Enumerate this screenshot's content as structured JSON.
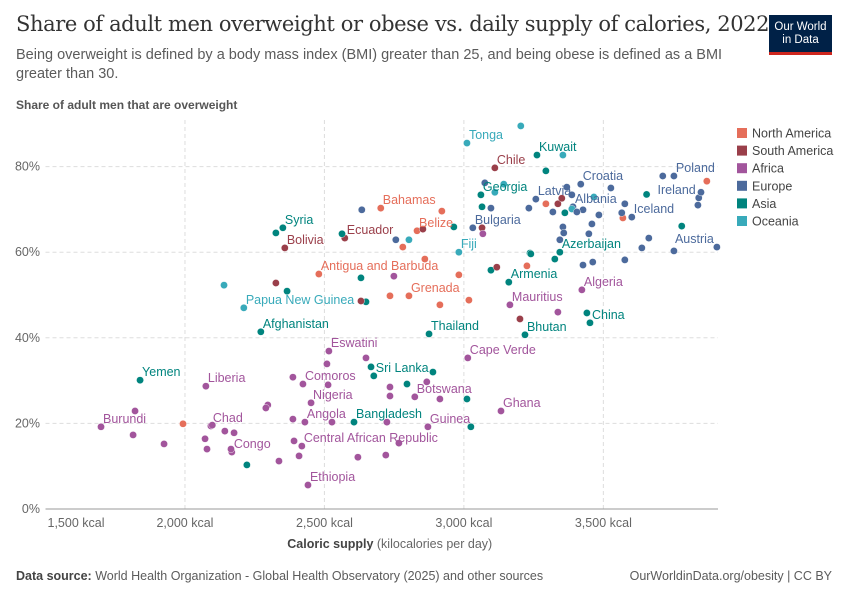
{
  "header": {
    "title": "Share of adult men overweight or obese vs. daily supply of calories, 2022",
    "subtitle": "Being overweight is defined by a body mass index (BMI) greater than 25, and being obese is defined as a BMI greater than 30.",
    "logo_line1": "Our World",
    "logo_line2": "in Data"
  },
  "footer": {
    "source_label": "Data source:",
    "source_text": " World Health Organization - Global Health Observatory (2025) and other sources",
    "url": "OurWorldinData.org/obesity | CC BY"
  },
  "chart_data": {
    "type": "scatter",
    "title": "Share of adult men overweight or obese vs. daily supply of calories, 2022",
    "ylabel": "Share of adult men that are overweight",
    "xlabel_bold": "Caloric supply",
    "xlabel_rest": " (kilocalories per day)",
    "xlim": [
      1500,
      3911
    ],
    "ylim": [
      0,
      90
    ],
    "x_ticks": [
      {
        "v": 1500,
        "label": "1,500 kcal"
      },
      {
        "v": 2000,
        "label": "2,000 kcal"
      },
      {
        "v": 2500,
        "label": "2,500 kcal"
      },
      {
        "v": 3000,
        "label": "3,000 kcal"
      },
      {
        "v": 3500,
        "label": "3,500 kcal"
      }
    ],
    "y_ticks": [
      {
        "v": 0,
        "label": "0%"
      },
      {
        "v": 20,
        "label": "20%"
      },
      {
        "v": 40,
        "label": "40%"
      },
      {
        "v": 60,
        "label": "60%"
      },
      {
        "v": 80,
        "label": "80%"
      }
    ],
    "grid": true,
    "legend_position": "right",
    "legend": [
      {
        "name": "North America",
        "color": "#e56e5a"
      },
      {
        "name": "South America",
        "color": "#9a3f4a"
      },
      {
        "name": "Africa",
        "color": "#a2559c"
      },
      {
        "name": "Europe",
        "color": "#4c6a9c"
      },
      {
        "name": "Asia",
        "color": "#00847e"
      },
      {
        "name": "Oceania",
        "color": "#38aaba"
      }
    ],
    "points": [
      [
        3011,
        85.5,
        "Oceania",
        "Tonga"
      ],
      [
        3262,
        82.7,
        "Asia",
        "Kuwait"
      ],
      [
        3111,
        79.7,
        "South America",
        "Chile"
      ],
      [
        3753,
        77.8,
        "Europe",
        "Poland"
      ],
      [
        3419,
        75.9,
        "Europe",
        "Croatia"
      ],
      [
        3842,
        72.7,
        "Europe",
        "Ireland"
      ],
      [
        3258,
        72.4,
        "Europe",
        "Latvia"
      ],
      [
        3061,
        73.4,
        "Asia",
        "Georgia"
      ],
      [
        3391,
        70.6,
        "Europe",
        "Albania"
      ],
      [
        3602,
        68.2,
        "Europe",
        "Iceland"
      ],
      [
        3032,
        65.7,
        "Europe",
        "Bulgaria"
      ],
      [
        2982,
        60.0,
        "Oceania",
        "Fiji"
      ],
      [
        3344,
        60.0,
        "Asia",
        "Azerbaijan"
      ],
      [
        3907,
        61.2,
        "Europe",
        "Austria"
      ],
      [
        2702,
        70.3,
        "North America",
        "Bahamas"
      ],
      [
        2351,
        65.7,
        "Asia",
        "Syria"
      ],
      [
        2573,
        63.3,
        "South America",
        "Ecuador"
      ],
      [
        2832,
        65.0,
        "North America",
        "Belize"
      ],
      [
        2358,
        61.0,
        "South America",
        "Bolivia"
      ],
      [
        2480,
        54.9,
        "North America",
        "Antigua and Barbuda"
      ],
      [
        2803,
        49.8,
        "North America",
        "Grenada"
      ],
      [
        2211,
        47.0,
        "Oceania",
        "Papua New Guinea"
      ],
      [
        2272,
        41.4,
        "Asia",
        "Afghanistan"
      ],
      [
        2875,
        40.9,
        "Asia",
        "Thailand"
      ],
      [
        3161,
        53.0,
        "Asia",
        "Armenia"
      ],
      [
        3423,
        51.2,
        "Africa",
        "Algeria"
      ],
      [
        3165,
        47.7,
        "Africa",
        "Mauritius"
      ],
      [
        3452,
        43.5,
        "Asia",
        "China"
      ],
      [
        3219,
        40.7,
        "Asia",
        "Bhutan"
      ],
      [
        3014,
        35.3,
        "Africa",
        "Cape Verde"
      ],
      [
        2677,
        31.1,
        "Asia",
        "Sri Lanka"
      ],
      [
        2824,
        26.2,
        "Africa",
        "Botswana"
      ],
      [
        3133,
        22.9,
        "Africa",
        "Ghana"
      ],
      [
        2871,
        19.2,
        "Africa",
        "Guinea"
      ],
      [
        2606,
        20.3,
        "Asia",
        "Bangladesh"
      ],
      [
        2419,
        14.7,
        "Africa",
        "Central African Republic"
      ],
      [
        2516,
        36.9,
        "Africa",
        "Eswatini"
      ],
      [
        2423,
        29.2,
        "Africa",
        "Comoros"
      ],
      [
        2452,
        24.8,
        "Africa",
        "Nigeria"
      ],
      [
        2430,
        20.3,
        "Africa",
        "Angola"
      ],
      [
        2093,
        19.4,
        "Africa",
        "Chad"
      ],
      [
        2168,
        13.3,
        "Africa",
        "Congo"
      ],
      [
        2441,
        5.6,
        "Africa",
        "Ethiopia"
      ],
      [
        2075,
        28.7,
        "Africa",
        "Liberia"
      ],
      [
        1839,
        30.1,
        "Asia",
        "Yemen"
      ],
      [
        1699,
        19.2,
        "Africa",
        "Burundi"
      ],
      [
        3204,
        89.5,
        "Oceania"
      ],
      [
        2140,
        52.3,
        "Oceania"
      ],
      [
        3143,
        75.9,
        "Oceania"
      ],
      [
        3111,
        74.0,
        "Oceania"
      ],
      [
        3355,
        82.7,
        "Oceania"
      ],
      [
        3466,
        72.9,
        "Oceania"
      ],
      [
        3387,
        70.1,
        "Oceania"
      ],
      [
        2803,
        62.9,
        "Oceania"
      ],
      [
        3294,
        79.0,
        "Asia"
      ],
      [
        3065,
        70.6,
        "Asia"
      ],
      [
        3362,
        69.2,
        "Asia"
      ],
      [
        3781,
        66.1,
        "Asia"
      ],
      [
        2964,
        65.9,
        "Asia"
      ],
      [
        3237,
        59.8,
        "Asia"
      ],
      [
        3326,
        58.4,
        "Asia"
      ],
      [
        3097,
        55.8,
        "Asia"
      ],
      [
        2326,
        64.5,
        "Asia"
      ],
      [
        2563,
        64.3,
        "Asia"
      ],
      [
        2366,
        50.9,
        "Asia"
      ],
      [
        2631,
        54.0,
        "Asia"
      ],
      [
        2649,
        48.4,
        "Asia"
      ],
      [
        3240,
        59.6,
        "Asia"
      ],
      [
        3441,
        45.8,
        "Asia"
      ],
      [
        2889,
        32.0,
        "Asia"
      ],
      [
        2796,
        29.2,
        "Asia"
      ],
      [
        3011,
        25.7,
        "Asia"
      ],
      [
        3025,
        19.2,
        "Asia"
      ],
      [
        2667,
        33.2,
        "Asia"
      ],
      [
        2222,
        10.3,
        "Asia"
      ],
      [
        3655,
        73.5,
        "Asia"
      ],
      [
        3337,
        71.3,
        "South America"
      ],
      [
        3351,
        72.6,
        "South America"
      ],
      [
        3065,
        65.7,
        "South America"
      ],
      [
        2326,
        52.8,
        "South America"
      ],
      [
        2631,
        48.6,
        "South America"
      ],
      [
        2853,
        65.4,
        "South America"
      ],
      [
        3118,
        56.5,
        "South America"
      ],
      [
        3201,
        44.4,
        "South America"
      ],
      [
        3871,
        76.6,
        "North America"
      ],
      [
        3294,
        71.3,
        "North America"
      ],
      [
        3570,
        68.0,
        "North America"
      ],
      [
        2921,
        69.6,
        "North America"
      ],
      [
        2781,
        61.2,
        "North America"
      ],
      [
        2860,
        58.4,
        "North America"
      ],
      [
        2982,
        54.7,
        "North America"
      ],
      [
        2735,
        49.8,
        "North America"
      ],
      [
        2914,
        47.7,
        "North America"
      ],
      [
        3226,
        56.8,
        "North America"
      ],
      [
        3018,
        48.8,
        "North America"
      ],
      [
        1993,
        19.9,
        "North America"
      ],
      [
        3075,
        76.2,
        "Europe"
      ],
      [
        3097,
        70.3,
        "Europe"
      ],
      [
        3233,
        70.3,
        "Europe"
      ],
      [
        3319,
        69.4,
        "Europe"
      ],
      [
        3369,
        75.2,
        "Europe"
      ],
      [
        3387,
        73.4,
        "Europe"
      ],
      [
        3427,
        69.9,
        "Europe"
      ],
      [
        3405,
        69.4,
        "Europe"
      ],
      [
        3484,
        68.7,
        "Europe"
      ],
      [
        3527,
        75.0,
        "Europe"
      ],
      [
        3577,
        71.3,
        "Europe"
      ],
      [
        3566,
        69.2,
        "Europe"
      ],
      [
        3713,
        77.8,
        "Europe"
      ],
      [
        3839,
        71.0,
        "Europe"
      ],
      [
        3355,
        65.9,
        "Europe"
      ],
      [
        3459,
        66.6,
        "Europe"
      ],
      [
        3358,
        64.5,
        "Europe"
      ],
      [
        3448,
        64.3,
        "Europe"
      ],
      [
        3344,
        62.9,
        "Europe"
      ],
      [
        3663,
        63.3,
        "Europe"
      ],
      [
        3638,
        61.0,
        "Europe"
      ],
      [
        3753,
        60.3,
        "Europe"
      ],
      [
        3577,
        58.2,
        "Europe"
      ],
      [
        3427,
        57.0,
        "Europe"
      ],
      [
        3462,
        57.7,
        "Europe"
      ],
      [
        2634,
        69.9,
        "Europe"
      ],
      [
        2756,
        62.9,
        "Europe"
      ],
      [
        3850,
        74.0,
        "Europe"
      ],
      [
        3068,
        64.3,
        "Africa"
      ],
      [
        2749,
        54.4,
        "Africa"
      ],
      [
        3337,
        46.0,
        "Africa"
      ],
      [
        1821,
        22.9,
        "Africa"
      ],
      [
        1814,
        17.3,
        "Africa"
      ],
      [
        1925,
        15.2,
        "Africa"
      ],
      [
        2072,
        16.4,
        "Africa"
      ],
      [
        2079,
        14.0,
        "Africa"
      ],
      [
        2143,
        18.2,
        "Africa"
      ],
      [
        2176,
        17.8,
        "Africa"
      ],
      [
        2165,
        14.0,
        "Africa"
      ],
      [
        2297,
        24.3,
        "Africa"
      ],
      [
        2290,
        23.6,
        "Africa"
      ],
      [
        2337,
        11.2,
        "Africa"
      ],
      [
        2387,
        30.8,
        "Africa"
      ],
      [
        2387,
        21.0,
        "Africa"
      ],
      [
        2391,
        15.9,
        "Africa"
      ],
      [
        2409,
        12.4,
        "Africa"
      ],
      [
        2509,
        33.9,
        "Africa"
      ],
      [
        2513,
        29.0,
        "Africa"
      ],
      [
        2527,
        20.3,
        "Africa"
      ],
      [
        2620,
        12.1,
        "Africa"
      ],
      [
        2649,
        35.3,
        "Africa"
      ],
      [
        2735,
        28.5,
        "Africa"
      ],
      [
        2735,
        26.4,
        "Africa"
      ],
      [
        2867,
        29.7,
        "Africa"
      ],
      [
        2914,
        25.7,
        "Africa"
      ],
      [
        2724,
        20.3,
        "Africa"
      ],
      [
        2767,
        15.4,
        "Africa"
      ],
      [
        2720,
        12.6,
        "Africa"
      ],
      [
        2098,
        19.6,
        "Africa"
      ]
    ]
  }
}
